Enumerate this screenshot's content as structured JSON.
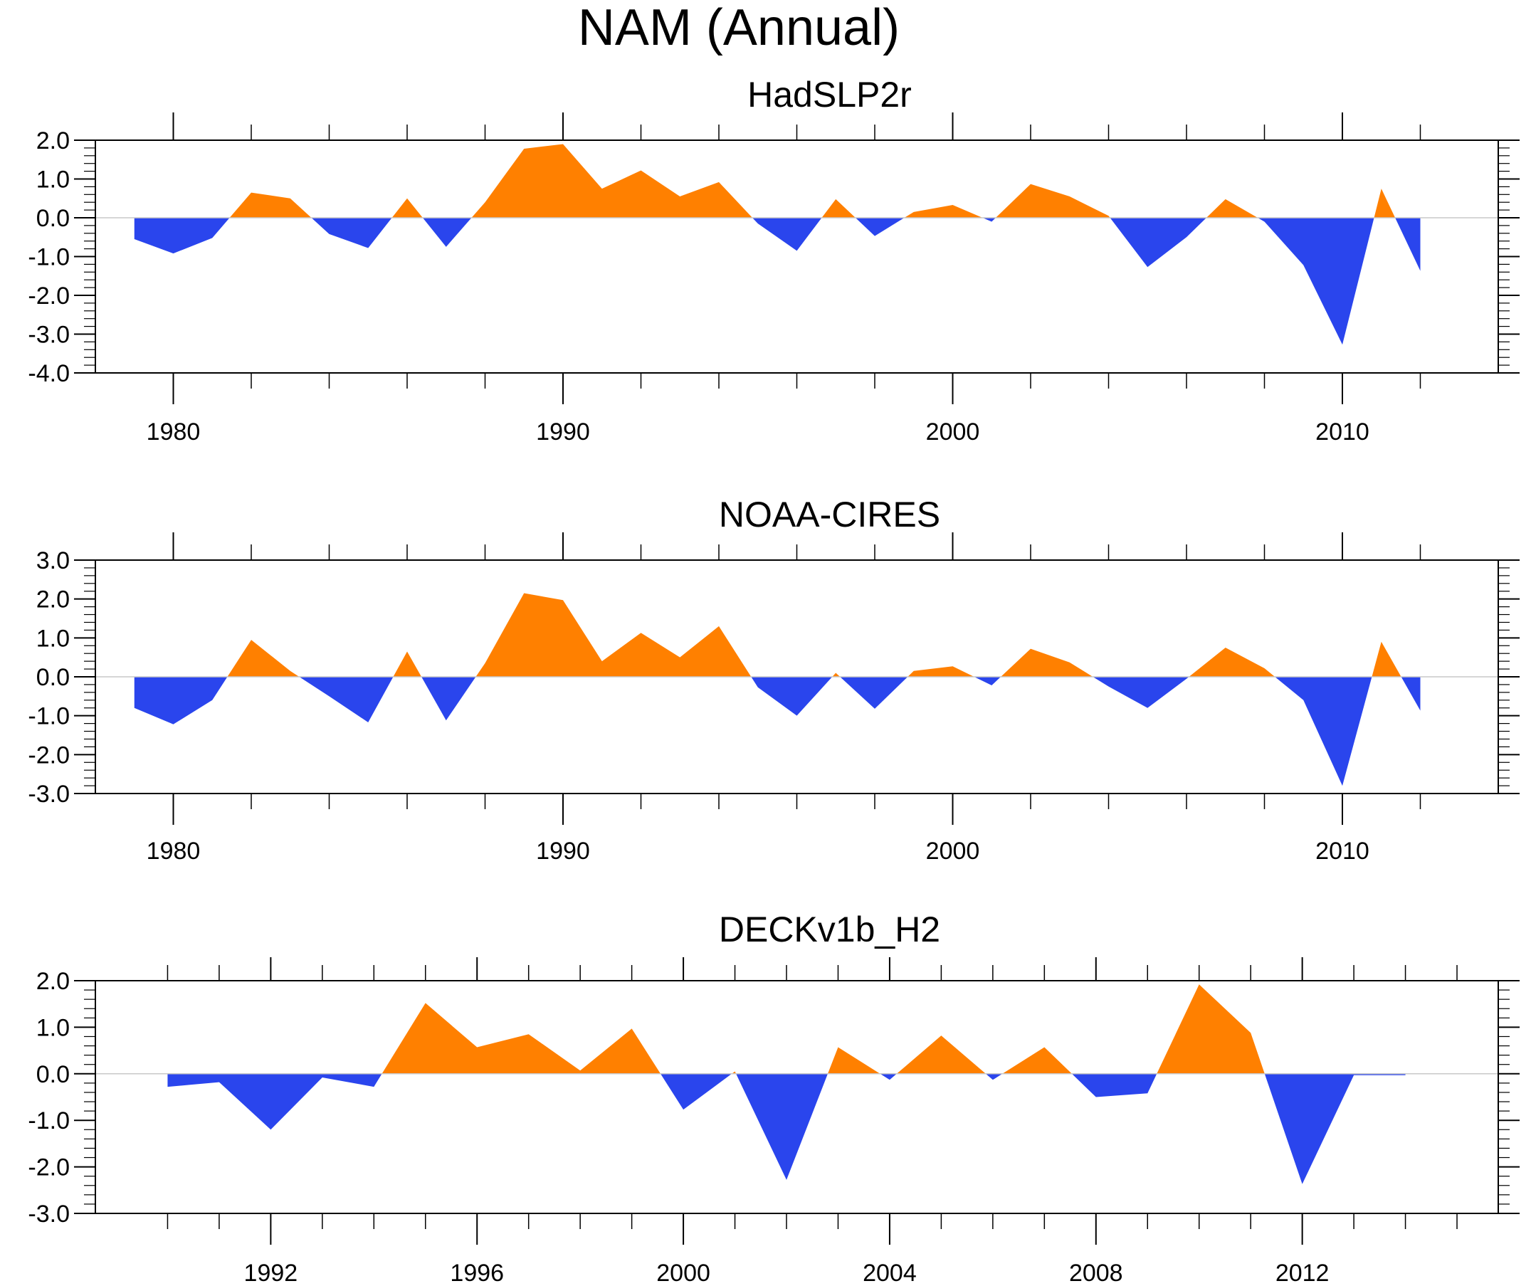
{
  "figure": {
    "title": "NAM (Annual)"
  },
  "colors": {
    "positive": "#ff8000",
    "negative": "#2a45ed",
    "axis": "#000000",
    "zero_line": "#c8c8c8"
  },
  "chart_data": [
    {
      "type": "area",
      "title": "HadSLP2r",
      "x": [
        1979,
        1980,
        1981,
        1982,
        1983,
        1984,
        1985,
        1986,
        1987,
        1988,
        1989,
        1990,
        1991,
        1992,
        1993,
        1994,
        1995,
        1996,
        1997,
        1998,
        1999,
        2000,
        2001,
        2002,
        2003,
        2004,
        2005,
        2006,
        2007,
        2008,
        2009,
        2010,
        2011,
        2012
      ],
      "values": [
        -0.55,
        -0.92,
        -0.52,
        0.65,
        0.5,
        -0.42,
        -0.78,
        0.5,
        -0.75,
        0.4,
        1.78,
        1.9,
        0.75,
        1.22,
        0.55,
        0.92,
        -0.15,
        -0.85,
        0.48,
        -0.47,
        0.15,
        0.33,
        -0.1,
        0.87,
        0.55,
        0.05,
        -1.27,
        -0.5,
        0.48,
        -0.1,
        -1.22,
        -3.27,
        0.75,
        -1.37
      ],
      "xlim": [
        1978,
        2014
      ],
      "ylim": [
        -4.0,
        2.0
      ],
      "yticks": [
        2.0,
        1.0,
        0.0,
        -1.0,
        -2.0,
        -3.0,
        -4.0
      ],
      "ytick_labels": [
        "2.0",
        "1.0",
        "0.0",
        "-1.0",
        "-2.0",
        "-3.0",
        "-4.0"
      ],
      "xticks": [
        1980,
        1990,
        2000,
        2010
      ],
      "xtick_labels": [
        "1980",
        "1990",
        "2000",
        "2010"
      ],
      "xminor": [
        1982,
        1984,
        1986,
        1988,
        1992,
        1994,
        1996,
        1998,
        2002,
        2004,
        2006,
        2008,
        2012
      ]
    },
    {
      "type": "area",
      "title": "NOAA-CIRES",
      "x": [
        1979,
        1980,
        1981,
        1982,
        1983,
        1984,
        1985,
        1986,
        1987,
        1988,
        1989,
        1990,
        1991,
        1992,
        1993,
        1994,
        1995,
        1996,
        1997,
        1998,
        1999,
        2000,
        2001,
        2002,
        2003,
        2004,
        2005,
        2006,
        2007,
        2008,
        2009,
        2010,
        2011,
        2012
      ],
      "values": [
        -0.8,
        -1.22,
        -0.6,
        0.95,
        0.15,
        -0.5,
        -1.17,
        0.65,
        -1.12,
        0.35,
        2.15,
        1.97,
        0.4,
        1.13,
        0.5,
        1.3,
        -0.27,
        -1.0,
        0.1,
        -0.82,
        0.15,
        0.27,
        -0.22,
        0.72,
        0.37,
        -0.25,
        -0.8,
        -0.05,
        0.75,
        0.22,
        -0.6,
        -2.8,
        0.9,
        -0.87
      ],
      "xlim": [
        1978,
        2014
      ],
      "ylim": [
        -3.0,
        3.0
      ],
      "yticks": [
        3.0,
        2.0,
        1.0,
        0.0,
        -1.0,
        -2.0,
        -3.0
      ],
      "ytick_labels": [
        "3.0",
        "2.0",
        "1.0",
        "0.0",
        "-1.0",
        "-2.0",
        "-3.0"
      ],
      "xticks": [
        1980,
        1990,
        2000,
        2010
      ],
      "xtick_labels": [
        "1980",
        "1990",
        "2000",
        "2010"
      ],
      "xminor": [
        1982,
        1984,
        1986,
        1988,
        1992,
        1994,
        1996,
        1998,
        2002,
        2004,
        2006,
        2008,
        2012
      ]
    },
    {
      "type": "area",
      "title": "DECKv1b_H2",
      "x": [
        1990,
        1991,
        1992,
        1993,
        1994,
        1995,
        1996,
        1997,
        1998,
        1999,
        2000,
        2001,
        2002,
        2003,
        2004,
        2005,
        2006,
        2007,
        2008,
        2009,
        2010,
        2011,
        2012,
        2013,
        2014
      ],
      "values": [
        -0.28,
        -0.18,
        -1.2,
        -0.08,
        -0.28,
        1.52,
        0.57,
        0.85,
        0.07,
        0.97,
        -0.77,
        0.05,
        -2.28,
        0.57,
        -0.13,
        0.82,
        -0.13,
        0.57,
        -0.5,
        -0.42,
        1.92,
        0.88,
        -2.37,
        -0.03,
        -0.03
      ],
      "xlim": [
        1988.6,
        2015.8
      ],
      "ylim": [
        -3.0,
        2.0
      ],
      "yticks": [
        2.0,
        1.0,
        0.0,
        -1.0,
        -2.0,
        -3.0
      ],
      "ytick_labels": [
        "2.0",
        "1.0",
        "0.0",
        "-1.0",
        "-2.0",
        "-3.0"
      ],
      "xticks": [
        1992,
        1996,
        2000,
        2004,
        2008,
        2012
      ],
      "xtick_labels": [
        "1992",
        "1996",
        "2000",
        "2004",
        "2008",
        "2012"
      ],
      "xminor": [
        1990,
        1991,
        1993,
        1994,
        1995,
        1997,
        1998,
        1999,
        2001,
        2002,
        2003,
        2005,
        2006,
        2007,
        2009,
        2010,
        2011,
        2013,
        2014,
        2015
      ]
    }
  ]
}
